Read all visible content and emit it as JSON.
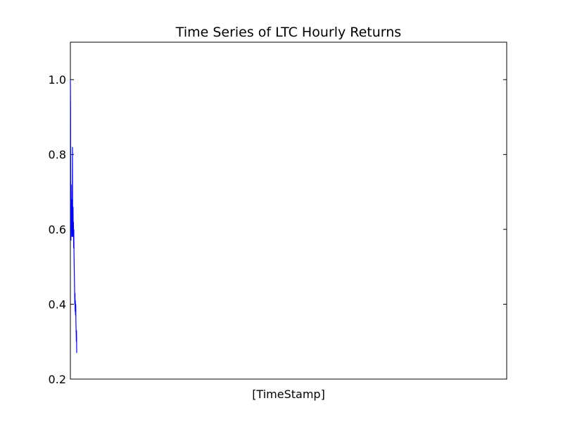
{
  "chart_data": {
    "type": "line",
    "title": "Time Series of LTC Hourly Returns",
    "xlabel": "[TimeStamp]",
    "ylabel": "",
    "ylim": [
      0.2,
      1.1
    ],
    "yticks": [
      0.2,
      0.4,
      0.6,
      0.8,
      1.0
    ],
    "ytick_labels": [
      "0.2",
      "0.4",
      "0.6",
      "0.8",
      "1.0"
    ],
    "grid": false,
    "series_color": "#0000ff",
    "series": [
      {
        "values": [
          1.0,
          0.93,
          0.62,
          0.57,
          0.72,
          0.6,
          0.62,
          0.68,
          0.58,
          0.6,
          0.65,
          0.82,
          0.63,
          0.58,
          0.66,
          0.6,
          0.62,
          0.55,
          0.6,
          0.53,
          0.5,
          0.47,
          0.44,
          0.4,
          0.43,
          0.38,
          0.41,
          0.37,
          0.4,
          0.35,
          0.33,
          0.3,
          0.33,
          0.27
        ]
      }
    ]
  }
}
